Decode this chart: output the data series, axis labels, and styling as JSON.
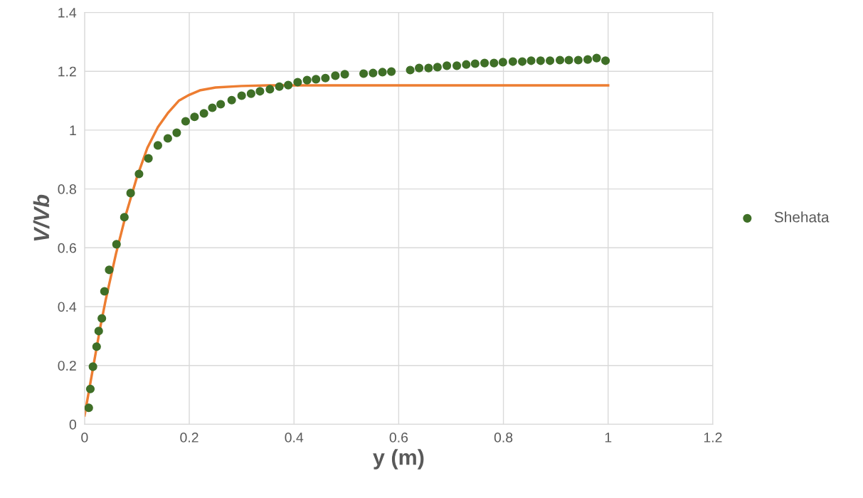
{
  "chart_data": {
    "type": "scatter",
    "xlabel": "y (m)",
    "ylabel": "V/Vb",
    "xlim": [
      0,
      1.2
    ],
    "ylim": [
      0,
      1.4
    ],
    "xticks": [
      0,
      0.2,
      0.4,
      0.6,
      0.8,
      1,
      1.2
    ],
    "yticks": [
      0,
      0.2,
      0.4,
      0.6,
      0.8,
      1,
      1.2,
      1.4
    ],
    "grid": true,
    "legend": "right",
    "series": [
      {
        "type": "line",
        "color": "#ed7d31",
        "x": [
          0,
          0.01,
          0.02,
          0.03,
          0.04,
          0.05,
          0.06,
          0.07,
          0.08,
          0.09,
          0.1,
          0.12,
          0.14,
          0.16,
          0.18,
          0.2,
          0.22,
          0.25,
          0.3,
          0.35,
          0.4,
          0.6,
          0.8,
          1.0
        ],
        "values": [
          0.03,
          0.13,
          0.23,
          0.33,
          0.42,
          0.5,
          0.58,
          0.65,
          0.72,
          0.78,
          0.84,
          0.94,
          1.01,
          1.06,
          1.1,
          1.12,
          1.135,
          1.145,
          1.15,
          1.152,
          1.152,
          1.152,
          1.152,
          1.152
        ]
      },
      {
        "name": "Shehata",
        "color": "#3f6f27",
        "marker": "circle",
        "x": [
          0.008,
          0.011,
          0.016,
          0.023,
          0.027,
          0.033,
          0.038,
          0.047,
          0.061,
          0.076,
          0.088,
          0.104,
          0.122,
          0.14,
          0.159,
          0.176,
          0.193,
          0.21,
          0.228,
          0.244,
          0.26,
          0.281,
          0.3,
          0.318,
          0.335,
          0.354,
          0.372,
          0.389,
          0.407,
          0.425,
          0.442,
          0.46,
          0.479,
          0.497,
          0.533,
          0.551,
          0.569,
          0.586,
          0.622,
          0.639,
          0.657,
          0.674,
          0.692,
          0.711,
          0.729,
          0.746,
          0.764,
          0.782,
          0.799,
          0.818,
          0.836,
          0.853,
          0.871,
          0.889,
          0.908,
          0.925,
          0.943,
          0.961,
          0.978,
          0.995
        ],
        "values": [
          0.056,
          0.12,
          0.196,
          0.264,
          0.317,
          0.36,
          0.452,
          0.525,
          0.612,
          0.704,
          0.786,
          0.851,
          0.904,
          0.948,
          0.972,
          0.991,
          1.03,
          1.045,
          1.057,
          1.076,
          1.088,
          1.102,
          1.117,
          1.124,
          1.132,
          1.139,
          1.148,
          1.153,
          1.163,
          1.17,
          1.173,
          1.177,
          1.185,
          1.19,
          1.192,
          1.194,
          1.197,
          1.199,
          1.204,
          1.211,
          1.211,
          1.214,
          1.219,
          1.219,
          1.223,
          1.226,
          1.228,
          1.228,
          1.231,
          1.233,
          1.233,
          1.236,
          1.236,
          1.236,
          1.238,
          1.238,
          1.238,
          1.24,
          1.245,
          1.236
        ]
      }
    ]
  }
}
